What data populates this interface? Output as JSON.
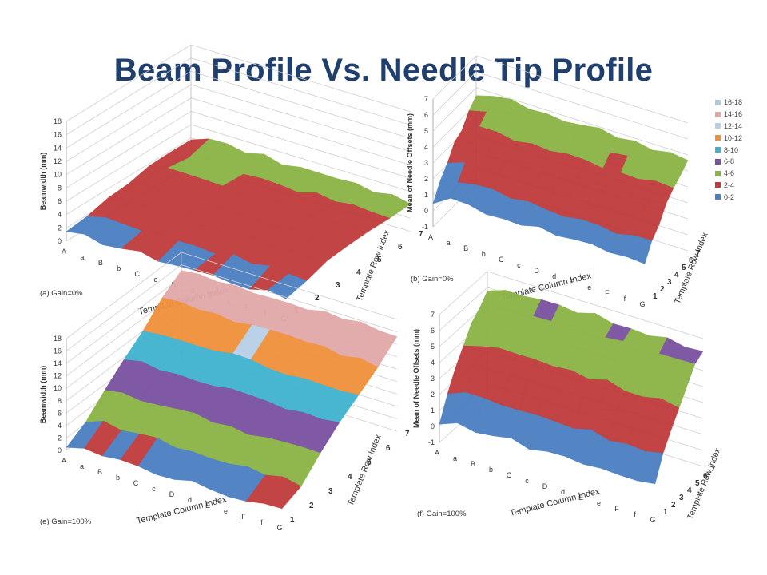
{
  "slide": {
    "title": "Beam Profile Vs. Needle Tip Profile"
  },
  "legend": {
    "items": [
      {
        "label": "16-18",
        "color": "#b4c8e2"
      },
      {
        "label": "14-16",
        "color": "#e2a8a8"
      },
      {
        "label": "12-14",
        "color": "#b8cfe6"
      },
      {
        "label": "10-12",
        "color": "#f0903a"
      },
      {
        "label": "8-10",
        "color": "#3fb3cf"
      },
      {
        "label": "6-8",
        "color": "#7a51a0"
      },
      {
        "label": "4-6",
        "color": "#8bb345"
      },
      {
        "label": "2-4",
        "color": "#bf3b3b"
      },
      {
        "label": "0-2",
        "color": "#4a7fc1"
      }
    ]
  },
  "chart_data": [
    {
      "type": "surface",
      "caption": "(a)  Gain=0%",
      "xlabel": "Template Column Index",
      "ylabel": "Beamwidth (mm)",
      "zlabel": "Template Row Index",
      "x_categories": [
        "A",
        "a",
        "B",
        "b",
        "C",
        "c",
        "D",
        "d",
        "E",
        "e",
        "F",
        "f",
        "G"
      ],
      "row_ticks": [
        "1",
        "2",
        "3",
        "4",
        "5",
        "6",
        "7"
      ],
      "y_ticks": [
        "0",
        "2",
        "4",
        "6",
        "8",
        "10",
        "12",
        "14",
        "16",
        "18"
      ],
      "ylim": [
        0,
        18
      ],
      "band_step": 2,
      "approx_height_by_row": [
        1.5,
        2.5,
        3,
        3.5,
        3.8,
        4,
        4.5
      ]
    },
    {
      "type": "surface",
      "caption": "(b)  Gain=0%",
      "xlabel": "Template Column Index",
      "ylabel": "Mean of Needle Offsets (mm)",
      "zlabel": "Template Row Index",
      "x_categories": [
        "A",
        "a",
        "B",
        "b",
        "C",
        "c",
        "D",
        "d",
        "E",
        "e",
        "F",
        "f",
        "G"
      ],
      "row_ticks": [
        "1",
        "2",
        "3",
        "4",
        "5",
        "6",
        "7"
      ],
      "y_ticks": [
        "-1",
        "0",
        "1",
        "2",
        "3",
        "4",
        "5",
        "6",
        "7"
      ],
      "ylim": [
        -1,
        7
      ],
      "band_step": 2,
      "approx_height_by_row": [
        1,
        1.8,
        2.5,
        3.2,
        3.8,
        4.3,
        4.8
      ]
    },
    {
      "type": "surface",
      "caption": "(e)  Gain=100%",
      "xlabel": "Template Column Index",
      "ylabel": "Beamwidth (mm)",
      "zlabel": "Template Row Index",
      "x_categories": [
        "A",
        "a",
        "B",
        "b",
        "C",
        "c",
        "D",
        "d",
        "E",
        "e",
        "F",
        "f",
        "G"
      ],
      "row_ticks": [
        "1",
        "2",
        "3",
        "4",
        "5",
        "6",
        "7"
      ],
      "y_ticks": [
        "0",
        "2",
        "4",
        "6",
        "8",
        "10",
        "12",
        "14",
        "16",
        "18"
      ],
      "ylim": [
        0,
        18
      ],
      "band_step": 2,
      "approx_height_by_row": [
        1,
        3,
        5.5,
        8,
        10.5,
        13,
        15.5
      ]
    },
    {
      "type": "surface",
      "caption": "(f)  Gain=100%",
      "xlabel": "Template Column Index",
      "ylabel": "Mean of Needle Offsets (mm)",
      "zlabel": "Template Row Index",
      "x_categories": [
        "A",
        "a",
        "B",
        "b",
        "C",
        "c",
        "D",
        "d",
        "E",
        "e",
        "F",
        "f",
        "G"
      ],
      "row_ticks": [
        "1",
        "2",
        "3",
        "4",
        "5",
        "6",
        "7"
      ],
      "y_ticks": [
        "-1",
        "0",
        "1",
        "2",
        "3",
        "4",
        "5",
        "6",
        "7"
      ],
      "ylim": [
        -1,
        7
      ],
      "band_step": 2,
      "approx_height_by_row": [
        0.5,
        2,
        3.2,
        4.2,
        5,
        5.7,
        6.3
      ]
    }
  ]
}
